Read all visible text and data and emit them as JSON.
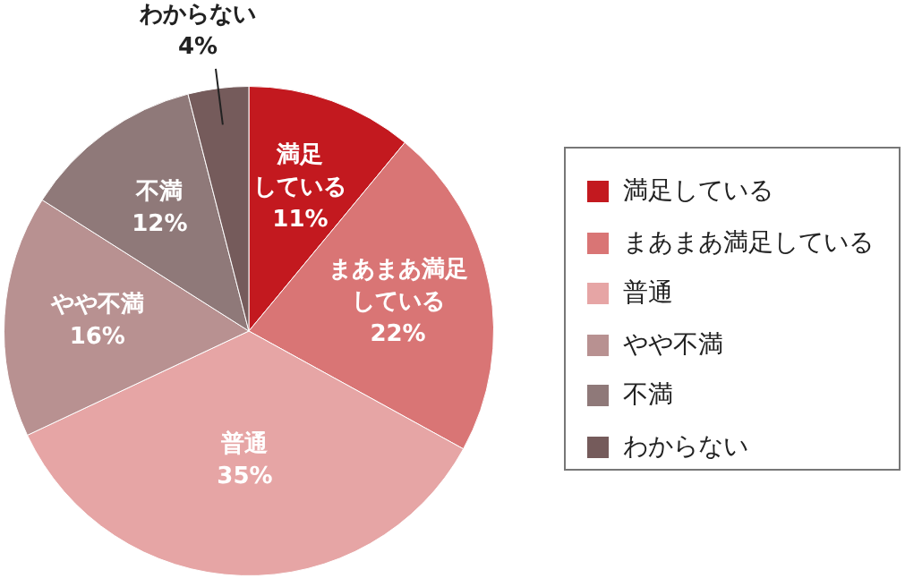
{
  "chart_data": {
    "type": "pie",
    "categories": [
      "満足している",
      "まあまあ満足している",
      "普通",
      "やや不満",
      "不満",
      "わからない"
    ],
    "values": [
      11,
      22,
      35,
      16,
      12,
      4
    ],
    "colors": [
      "#c3191f",
      "#d97575",
      "#e6a5a5",
      "#b89191",
      "#8f7979",
      "#755b5b"
    ],
    "value_labels": [
      "11%",
      "22%",
      "35%",
      "16%",
      "12%",
      "4%"
    ],
    "legend": "right"
  }
}
